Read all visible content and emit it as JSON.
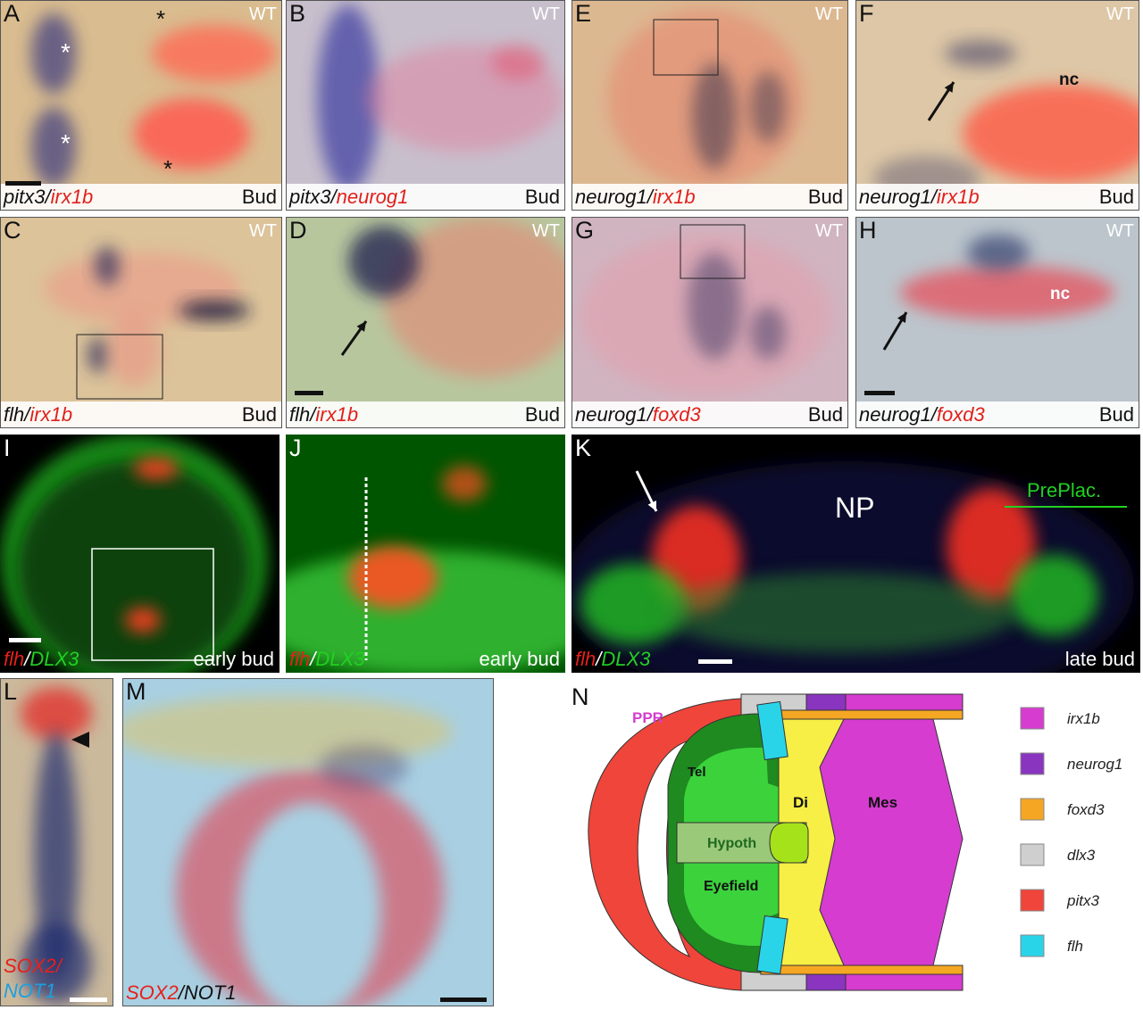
{
  "panels": [
    {
      "letter": "A",
      "genotype": "WT",
      "stage": "Bud",
      "label": [
        {
          "text": "pitx3",
          "color": "#111"
        },
        {
          "text": "/",
          "color": "#111"
        },
        {
          "text": "irx1b",
          "color": "#e0201b"
        }
      ],
      "annotations": [
        {
          "text": "*",
          "color": "#ffffff"
        },
        {
          "text": "*",
          "color": "#ffffff"
        },
        {
          "text": "*",
          "color": "#111111"
        },
        {
          "text": "*",
          "color": "#111111"
        }
      ]
    },
    {
      "letter": "B",
      "genotype": "WT",
      "stage": "Bud",
      "label": [
        {
          "text": "pitx3",
          "color": "#111"
        },
        {
          "text": "/",
          "color": "#111"
        },
        {
          "text": "neurog1",
          "color": "#e0201b"
        }
      ],
      "annotations": []
    },
    {
      "letter": "E",
      "genotype": "WT",
      "stage": "Bud",
      "label": [
        {
          "text": "neurog1",
          "color": "#111"
        },
        {
          "text": "/",
          "color": "#111"
        },
        {
          "text": "irx1b",
          "color": "#e0201b"
        }
      ],
      "annotations": []
    },
    {
      "letter": "F",
      "genotype": "WT",
      "stage": "Bud",
      "label": [
        {
          "text": "neurog1",
          "color": "#111"
        },
        {
          "text": "/",
          "color": "#111"
        },
        {
          "text": "irx1b",
          "color": "#e0201b"
        }
      ],
      "annotations": [
        {
          "text": "nc",
          "color": "#111111"
        }
      ]
    },
    {
      "letter": "C",
      "genotype": "WT",
      "stage": "Bud",
      "label": [
        {
          "text": "flh",
          "color": "#111"
        },
        {
          "text": "/",
          "color": "#111"
        },
        {
          "text": "irx1b",
          "color": "#e0201b"
        }
      ],
      "annotations": []
    },
    {
      "letter": "D",
      "genotype": "WT",
      "stage": "Bud",
      "label": [
        {
          "text": "flh",
          "color": "#111"
        },
        {
          "text": "/",
          "color": "#111"
        },
        {
          "text": "irx1b",
          "color": "#e0201b"
        }
      ],
      "annotations": []
    },
    {
      "letter": "G",
      "genotype": "WT",
      "stage": "Bud",
      "label": [
        {
          "text": "neurog1",
          "color": "#111"
        },
        {
          "text": "/",
          "color": "#111"
        },
        {
          "text": "foxd3",
          "color": "#e0201b"
        }
      ],
      "annotations": []
    },
    {
      "letter": "H",
      "genotype": "WT",
      "stage": "Bud",
      "label": [
        {
          "text": "neurog1",
          "color": "#111"
        },
        {
          "text": "/",
          "color": "#111"
        },
        {
          "text": "foxd3",
          "color": "#e0201b"
        }
      ],
      "annotations": [
        {
          "text": "nc",
          "color": "#ffffff"
        }
      ]
    },
    {
      "letter": "I",
      "stage": "early bud",
      "label": [
        {
          "text": "flh",
          "color": "#e8201b"
        },
        {
          "text": "/",
          "color": "#ffffff"
        },
        {
          "text": "DLX3",
          "color": "#22d022"
        }
      ],
      "annotations": []
    },
    {
      "letter": "J",
      "stage": "early bud",
      "label": [
        {
          "text": "flh",
          "color": "#e8201b"
        },
        {
          "text": "/",
          "color": "#ffffff"
        },
        {
          "text": "DLX3",
          "color": "#22d022"
        }
      ],
      "annotations": []
    },
    {
      "letter": "K",
      "stage": "late bud",
      "label": [
        {
          "text": "flh",
          "color": "#e8201b"
        },
        {
          "text": "/",
          "color": "#ffffff"
        },
        {
          "text": "DLX3",
          "color": "#22d022"
        }
      ],
      "annotations": [
        {
          "text": "NP",
          "color": "#ffffff"
        },
        {
          "text": "PrePlac.",
          "color": "#22d022"
        }
      ]
    },
    {
      "letter": "L",
      "label": [
        {
          "text": "SOX2/",
          "color": "#e8201b"
        },
        {
          "text": "NOT1",
          "color": "#1aa0e0"
        }
      ],
      "annotations": []
    },
    {
      "letter": "M",
      "label": [
        {
          "text": "SOX2",
          "color": "#e8201b"
        },
        {
          "text": "/NOT1",
          "color": "#111"
        }
      ],
      "annotations": []
    }
  ],
  "diagram": {
    "letter": "N",
    "regions": {
      "ppr": "PPR",
      "tel": "Tel",
      "di": "Di",
      "mes": "Mes",
      "hypoth": "Hypoth",
      "eyefield": "Eyefield"
    },
    "legend": [
      {
        "label": "irx1b",
        "color": "#d63ccf"
      },
      {
        "label": "neurog1",
        "color": "#8a35c0"
      },
      {
        "label": "foxd3",
        "color": "#f5a623"
      },
      {
        "label": "dlx3",
        "color": "#cfcfcf"
      },
      {
        "label": "pitx3",
        "color": "#f0453a"
      },
      {
        "label": "flh",
        "color": "#2ad4e8"
      }
    ]
  }
}
